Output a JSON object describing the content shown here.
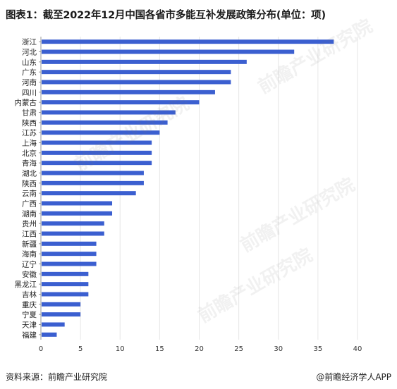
{
  "title": "图表1：截至2022年12月中国各省市多能互补发展政策分布(单位：项)",
  "source": "资料来源：前瞻产业研究院",
  "brand": "@前瞻经济学人APP",
  "watermark": "前瞻产业研究院",
  "colors": {
    "bar": "#3b5fd0",
    "grid": "#e6e6e6",
    "axis": "#999999"
  },
  "chart_data": {
    "type": "bar",
    "orientation": "horizontal",
    "categories": [
      "浙江",
      "河北",
      "山东",
      "广东",
      "河南",
      "四川",
      "内蒙古",
      "甘肃",
      "陕西",
      "江苏",
      "上海",
      "北京",
      "青海",
      "湖北",
      "陕西",
      "云南",
      "广西",
      "湖南",
      "贵州",
      "江西",
      "新疆",
      "海南",
      "辽宁",
      "安徽",
      "黑龙江",
      "吉林",
      "重庆",
      "宁夏",
      "天津",
      "福建"
    ],
    "values": [
      37,
      32,
      26,
      24,
      24,
      22,
      20,
      17,
      16,
      15,
      14,
      14,
      14,
      13,
      13,
      12,
      9,
      9,
      8,
      8,
      7,
      7,
      7,
      6,
      6,
      6,
      5,
      5,
      3,
      2
    ],
    "xlim": [
      0,
      40
    ],
    "xticks": [
      0,
      5,
      10,
      15,
      20,
      25,
      30,
      35,
      40
    ],
    "grid": true
  }
}
